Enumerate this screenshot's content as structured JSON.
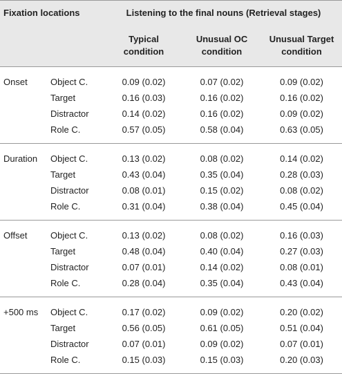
{
  "header": {
    "fixation_locations": "Fixation locations",
    "listening": "Listening to the final nouns (Retrieval stages)",
    "conditions": [
      [
        "Typical",
        "condition"
      ],
      [
        "Unusual OC",
        "condition"
      ],
      [
        "Unusual Target",
        "condition"
      ]
    ]
  },
  "groups": [
    {
      "stage": "Onset",
      "rows": [
        {
          "location": "Object C.",
          "values": [
            "0.09 (0.02)",
            "0.07 (0.02)",
            "0.09 (0.02)"
          ]
        },
        {
          "location": "Target",
          "values": [
            "0.16 (0.03)",
            "0.16 (0.02)",
            "0.16 (0.02)"
          ]
        },
        {
          "location": "Distractor",
          "values": [
            "0.14 (0.02)",
            "0.16 (0.02)",
            "0.09 (0.02)"
          ]
        },
        {
          "location": "Role C.",
          "values": [
            "0.57 (0.05)",
            "0.58 (0.04)",
            "0.63 (0.05)"
          ]
        }
      ]
    },
    {
      "stage": "Duration",
      "rows": [
        {
          "location": "Object C.",
          "values": [
            "0.13 (0.02)",
            "0.08 (0.02)",
            "0.14 (0.02)"
          ]
        },
        {
          "location": "Target",
          "values": [
            "0.43 (0.04)",
            "0.35 (0.04)",
            "0.28 (0.03)"
          ]
        },
        {
          "location": "Distractor",
          "values": [
            "0.08 (0.01)",
            "0.15 (0.02)",
            "0.08 (0.02)"
          ]
        },
        {
          "location": "Role C.",
          "values": [
            "0.31 (0.04)",
            "0.38 (0.04)",
            "0.45 (0.04)"
          ]
        }
      ]
    },
    {
      "stage": "Offset",
      "rows": [
        {
          "location": "Object C.",
          "values": [
            "0.13 (0.02)",
            "0.08 (0.02)",
            "0.16 (0.03)"
          ]
        },
        {
          "location": "Target",
          "values": [
            "0.48 (0.04)",
            "0.40 (0.04)",
            "0.27 (0.03)"
          ]
        },
        {
          "location": "Distractor",
          "values": [
            "0.07 (0.01)",
            "0.14 (0.02)",
            "0.08 (0.01)"
          ]
        },
        {
          "location": "Role C.",
          "values": [
            "0.28 (0.04)",
            "0.35 (0.04)",
            "0.43 (0.04)"
          ]
        }
      ]
    },
    {
      "stage": "+500 ms",
      "rows": [
        {
          "location": "Object C.",
          "values": [
            "0.17 (0.02)",
            "0.09 (0.02)",
            "0.20 (0.02)"
          ]
        },
        {
          "location": "Target",
          "values": [
            "0.56 (0.05)",
            "0.61 (0.05)",
            "0.51 (0.04)"
          ]
        },
        {
          "location": "Distractor",
          "values": [
            "0.07 (0.01)",
            "0.09 (0.02)",
            "0.07 (0.01)"
          ]
        },
        {
          "location": "Role C.",
          "values": [
            "0.15 (0.03)",
            "0.15 (0.03)",
            "0.20 (0.03)"
          ]
        }
      ]
    }
  ]
}
